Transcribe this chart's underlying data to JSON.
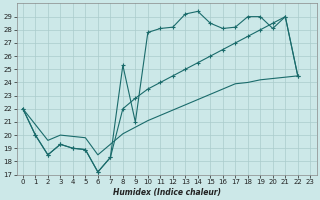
{
  "xlabel": "Humidex (Indice chaleur)",
  "background_color": "#cce8e8",
  "grid_color": "#aacccc",
  "line_color": "#1a6b6b",
  "xlim": [
    -0.5,
    23.5
  ],
  "ylim": [
    17,
    30
  ],
  "xticks": [
    0,
    1,
    2,
    3,
    4,
    5,
    6,
    7,
    8,
    9,
    10,
    11,
    12,
    13,
    14,
    15,
    16,
    17,
    18,
    19,
    20,
    21,
    22,
    23
  ],
  "yticks": [
    17,
    18,
    19,
    20,
    21,
    22,
    23,
    24,
    25,
    26,
    27,
    28,
    29
  ],
  "line1_x": [
    0,
    1,
    2,
    3,
    4,
    5,
    6,
    7,
    8,
    9,
    10,
    11,
    12,
    13,
    14,
    15,
    16,
    17,
    18,
    19,
    20,
    21,
    22
  ],
  "line1_y": [
    22.0,
    20.0,
    18.5,
    19.3,
    19.0,
    18.9,
    17.2,
    18.3,
    25.3,
    21.0,
    27.8,
    28.1,
    28.2,
    29.2,
    29.4,
    28.5,
    28.1,
    28.2,
    29.0,
    29.0,
    28.1,
    29.0,
    24.5
  ],
  "line2_x": [
    0,
    1,
    2,
    3,
    4,
    5,
    6,
    7,
    8,
    9,
    10,
    11,
    12,
    13,
    14,
    15,
    16,
    17,
    18,
    19,
    20,
    21,
    22
  ],
  "line2_y": [
    22.0,
    20.0,
    18.5,
    19.3,
    19.0,
    18.9,
    17.2,
    18.3,
    22.0,
    22.8,
    23.5,
    24.0,
    24.5,
    25.0,
    25.5,
    26.0,
    26.5,
    27.0,
    27.5,
    28.0,
    28.5,
    29.0,
    24.5
  ],
  "line3_x": [
    0,
    1,
    2,
    3,
    4,
    5,
    6,
    7,
    8,
    9,
    10,
    11,
    12,
    13,
    14,
    15,
    16,
    17,
    18,
    19,
    20,
    21,
    22
  ],
  "line3_y": [
    22.0,
    20.8,
    19.6,
    20.0,
    19.9,
    19.8,
    18.5,
    19.3,
    20.1,
    20.6,
    21.1,
    21.5,
    21.9,
    22.3,
    22.7,
    23.1,
    23.5,
    23.9,
    24.0,
    24.2,
    24.3,
    24.4,
    24.5
  ]
}
